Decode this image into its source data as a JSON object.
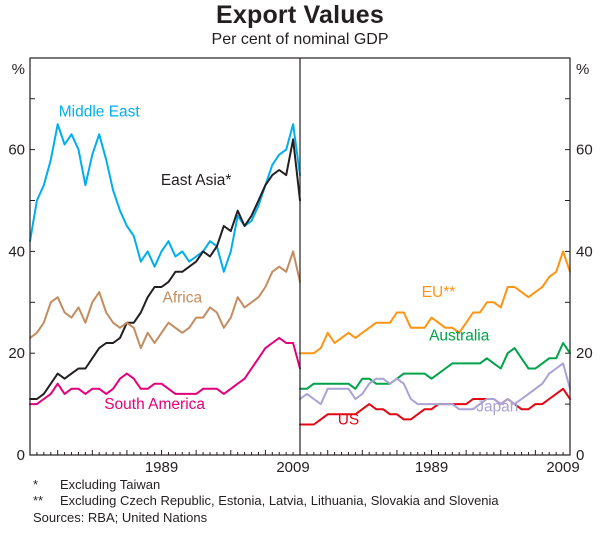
{
  "title": "Export Values",
  "subtitle": "Per cent of nominal GDP",
  "footnotes": [
    {
      "marker": "*",
      "text": "Excluding Taiwan"
    },
    {
      "marker": "**",
      "text": "Excluding Czech Republic, Estonia, Latvia, Lithuania, Slovakia and Slovenia"
    }
  ],
  "sources": "Sources: RBA; United Nations",
  "chart_data": {
    "type": "line",
    "title": "Export Values",
    "subtitle": "Per cent of nominal GDP",
    "unit_label": "%",
    "ylim": [
      0,
      78
    ],
    "yticks": [
      0,
      20,
      40,
      60
    ],
    "x_range": [
      1970,
      2009
    ],
    "xtick_years": [
      1989,
      2009
    ],
    "xtick_labels": [
      "1989",
      "2009"
    ],
    "grid": false,
    "legend": "inline-labels",
    "axis_color": "#231f20",
    "years": [
      1970,
      1971,
      1972,
      1973,
      1974,
      1975,
      1976,
      1977,
      1978,
      1979,
      1980,
      1981,
      1982,
      1983,
      1984,
      1985,
      1986,
      1987,
      1988,
      1989,
      1990,
      1991,
      1992,
      1993,
      1994,
      1995,
      1996,
      1997,
      1998,
      1999,
      2000,
      2001,
      2002,
      2003,
      2004,
      2005,
      2006,
      2007,
      2008,
      2009
    ],
    "panels": [
      {
        "side": "left",
        "series": [
          {
            "name": "Middle East",
            "color": "#00aeef",
            "label_anchor": {
              "year": 1980,
              "value": 66.5
            },
            "values": [
              42,
              50,
              53,
              58,
              65,
              61,
              63,
              60,
              53,
              59,
              63,
              58,
              52,
              48,
              45,
              43,
              38,
              40,
              37,
              40,
              42,
              39,
              40,
              38,
              39,
              40,
              42,
              41,
              36,
              40,
              47,
              45,
              46,
              49,
              53,
              57,
              59,
              60,
              65,
              55
            ]
          },
          {
            "name": "East Asia*",
            "color": "#231f20",
            "label_anchor": {
              "year": 1994,
              "value": 53
            },
            "values": [
              11,
              11,
              12,
              14,
              16,
              15,
              16,
              17,
              17,
              19,
              21,
              22,
              22,
              23,
              26,
              26,
              28,
              31,
              33,
              33,
              34,
              36,
              36,
              37,
              38,
              40,
              39,
              41,
              45,
              44,
              48,
              45,
              47,
              50,
              53,
              55,
              56,
              55,
              62,
              50
            ]
          },
          {
            "name": "Africa",
            "color": "#c38d5f",
            "label_anchor": {
              "year": 1992,
              "value": 30
            },
            "values": [
              23,
              24,
              26,
              30,
              31,
              28,
              27,
              29,
              26,
              30,
              32,
              28,
              26,
              25,
              26,
              25,
              21,
              24,
              22,
              24,
              26,
              25,
              24,
              25,
              27,
              27,
              29,
              28,
              25,
              27,
              31,
              29,
              30,
              31,
              33,
              36,
              37,
              36,
              40,
              34
            ]
          },
          {
            "name": "South America",
            "color": "#e4007c",
            "label_anchor": {
              "year": 1988,
              "value": 9
            },
            "values": [
              10,
              10,
              11,
              12,
              14,
              12,
              13,
              13,
              12,
              13,
              13,
              12,
              13,
              15,
              16,
              15,
              13,
              13,
              14,
              14,
              13,
              12,
              12,
              12,
              12,
              13,
              13,
              13,
              12,
              13,
              14,
              15,
              17,
              19,
              21,
              22,
              23,
              22,
              22,
              17
            ]
          }
        ]
      },
      {
        "side": "right",
        "series": [
          {
            "name": "EU**",
            "color": "#ff9412",
            "label_anchor": {
              "year": 1990,
              "value": 31
            },
            "values": [
              20,
              20,
              20,
              21,
              24,
              22,
              23,
              24,
              23,
              24,
              25,
              26,
              26,
              26,
              28,
              28,
              25,
              25,
              25,
              27,
              26,
              25,
              25,
              24,
              26,
              28,
              28,
              30,
              30,
              29,
              33,
              33,
              32,
              31,
              32,
              33,
              35,
              36,
              40,
              36
            ]
          },
          {
            "name": "Australia",
            "color": "#00a24a",
            "label_anchor": {
              "year": 1993,
              "value": 22.5
            },
            "values": [
              13,
              13,
              14,
              14,
              14,
              14,
              14,
              14,
              13,
              15,
              15,
              14,
              14,
              14,
              15,
              16,
              16,
              16,
              16,
              15,
              16,
              17,
              18,
              18,
              18,
              18,
              18,
              19,
              18,
              17,
              20,
              21,
              19,
              17,
              17,
              18,
              19,
              19,
              22,
              20
            ]
          },
          {
            "name": "US",
            "color": "#e30713",
            "label_anchor": {
              "year": 1977,
              "value": 6
            },
            "values": [
              6,
              6,
              6,
              7,
              8,
              8,
              8,
              8,
              8,
              9,
              10,
              9,
              9,
              8,
              8,
              7,
              7,
              8,
              9,
              9,
              10,
              10,
              10,
              10,
              10,
              11,
              11,
              11,
              11,
              10,
              11,
              10,
              9,
              9,
              10,
              10,
              11,
              12,
              13,
              11
            ]
          },
          {
            "name": "Japan",
            "color": "#a9a2d4",
            "label_anchor": {
              "year": 1998.5,
              "value": 8.5
            },
            "values": [
              11,
              12,
              11,
              10,
              13,
              13,
              13,
              13,
              11,
              12,
              14,
              15,
              15,
              14,
              15,
              14,
              11,
              10,
              10,
              10,
              10,
              10,
              10,
              9,
              9,
              9,
              10,
              11,
              11,
              10,
              11,
              10,
              11,
              12,
              13,
              14,
              16,
              17,
              18,
              13
            ]
          }
        ]
      }
    ]
  }
}
